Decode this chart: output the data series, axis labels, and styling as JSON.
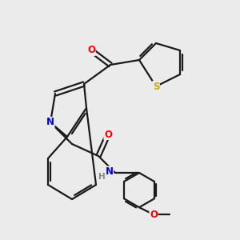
{
  "background_color": "#ebebeb",
  "bond_color": "#1a1a1a",
  "atom_colors": {
    "O": "#ff0000",
    "N": "#0000ee",
    "S": "#ccaa00",
    "H": "#888888",
    "C": "#1a1a1a"
  },
  "figsize": [
    3.0,
    3.0
  ],
  "dpi": 100
}
